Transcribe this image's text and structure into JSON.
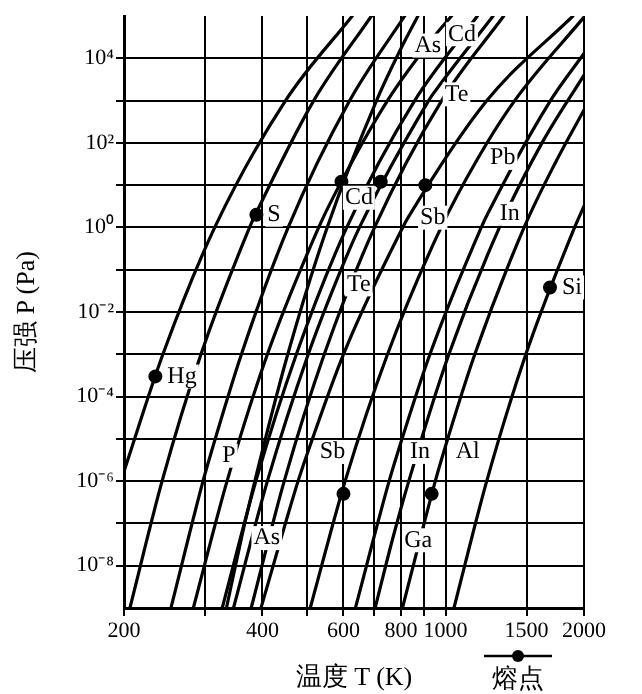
{
  "chart_data": {
    "type": "line",
    "xlabel": "温度 T (K)",
    "ylabel": "压强 P (Pa)",
    "log": "xy",
    "xlim": [
      200,
      2000
    ],
    "ylim": [
      1e-09,
      100000.0
    ],
    "xticks": [
      200,
      {
        "value": 300,
        "label": null
      },
      400,
      {
        "value": 500,
        "label": null
      },
      600,
      {
        "value": 700,
        "label": null
      },
      800,
      {
        "value": 900,
        "label": null
      },
      1000,
      1500,
      2000
    ],
    "yticks": [
      {
        "value": 1e-08,
        "label": "10⁻⁸"
      },
      {
        "value": 1e-07,
        "label": null
      },
      {
        "value": 1e-06,
        "label": "10⁻⁶"
      },
      {
        "value": 1e-05,
        "label": null
      },
      {
        "value": 0.0001,
        "label": "10⁻⁴"
      },
      {
        "value": 0.001,
        "label": null
      },
      {
        "value": 0.01,
        "label": "10⁻²"
      },
      {
        "value": 0.1,
        "label": null
      },
      {
        "value": 1,
        "label": "10⁰"
      },
      {
        "value": 10,
        "label": null
      },
      {
        "value": 100,
        "label": "10²"
      },
      {
        "value": 1000,
        "label": null
      },
      {
        "value": 10000,
        "label": "10⁴"
      }
    ],
    "grid": true,
    "legend": "bottom right",
    "marker": "none",
    "line_style": "solid",
    "series": [
      {
        "color": "#000000",
        "x": [
          200,
          243,
          315,
          449,
          627
        ],
        "values": [
          1.7e-06,
          0.001,
          1,
          1000,
          100000.0
        ]
      },
      {
        "color": "#000000",
        "x": [
          206,
          242,
          294,
          375,
          386,
          517,
          690
        ],
        "values": [
          1e-09,
          1e-06,
          0.001,
          1,
          2,
          1000,
          100000.0
        ]
      },
      {
        "color": "#000000",
        "x": [
          253,
          297,
          308,
          360,
          455,
          619,
          815
        ],
        "values": [
          1e-09,
          1e-06,
          4e-06,
          0.001,
          1,
          1000,
          100000.0
        ]
      },
      {
        "color": "#000000",
        "x": [
          334,
          360,
          385,
          454,
          553,
          708,
          806,
          871
        ],
        "values": [
          1e-09,
          4.5e-08,
          1e-06,
          0.001,
          1,
          1000,
          20000.0,
          100000.0
        ]
      },
      {
        "color": "#000000",
        "x": [
          283,
          335,
          410,
          530,
          569,
          748,
          953,
          1031
        ],
        "values": [
          1e-09,
          1e-06,
          0.001,
          1,
          5,
          1000,
          37000.0,
          100000.0
        ]
      },
      {
        "color": "#000000",
        "x": [
          327,
          387,
          474,
          610,
          857,
          1173
        ],
        "values": [
          1e-09,
          1e-06,
          0.001,
          1,
          1000,
          100000.0
        ]
      },
      {
        "color": "#000000",
        "x": [
          378,
          446,
          545,
          701,
          981,
          1338
        ],
        "values": [
          1e-09,
          1e-06,
          0.001,
          1,
          1000,
          100000.0
        ]
      },
      {
        "color": "#000000",
        "x": [
          346,
          410,
          503,
          575,
          650,
          919,
          938,
          1269
        ],
        "values": [
          1e-09,
          1e-06,
          0.001,
          0.045,
          1,
          1000,
          1400,
          100000.0
        ]
      },
      {
        "color": "#000000",
        "x": [
          397,
          478,
          502,
          600,
          807,
          829,
          1230,
          1892
        ],
        "values": [
          1e-09,
          1e-06,
          4.9e-06,
          0.001,
          1,
          1.7,
          1000,
          100000.0
        ]
      },
      {
        "color": "#000000",
        "x": [
          508,
          605,
          748,
          978,
          1177,
          1414,
          2000
        ],
        "values": [
          1e-09,
          1e-06,
          0.001,
          1,
          44,
          1000,
          94000.0
        ]
      },
      {
        "color": "#000000",
        "x": [
          637,
          754,
          788,
          925,
          1196,
          1235,
          1691,
          2000
        ],
        "values": [
          1e-09,
          1e-06,
          4.9e-06,
          0.001,
          1,
          2.1,
          1000,
          13000.0
        ]
      },
      {
        "color": "#000000",
        "x": [
          703,
          766,
          832,
          1017,
          1310,
          1621,
          2000
        ],
        "values": [
          1e-09,
          4e-08,
          1e-06,
          0.001,
          1,
          100,
          4000
        ]
      },
      {
        "color": "#000000",
        "x": [
          806,
          950,
          991,
          1158,
          1482,
          1723,
          2000
        ],
        "values": [
          1e-09,
          1e-06,
          4.9e-06,
          0.001,
          1,
          30,
          600
        ]
      },
      {
        "color": "#000000",
        "x": [
          1043,
          1229,
          1495,
          1908,
          2000
        ],
        "values": [
          1e-09,
          1e-06,
          0.001,
          1,
          3.2
        ]
      },
      {
        "type": "scatter",
        "name": "熔点",
        "color": "#000000",
        "marker": "circle",
        "x": [
          234,
          388,
          594,
          723,
          904,
          600,
          933,
          1687
        ],
        "values": [
          0.0003,
          2,
          12,
          12,
          10,
          5e-07,
          5e-07,
          0.038
        ]
      }
    ],
    "annotations": [
      {
        "text": "Hg",
        "x": 234,
        "y": 0.0003
      },
      {
        "text": "S",
        "x": 386,
        "y": 2
      },
      {
        "text": "P",
        "x": 308,
        "y": 4e-06
      },
      {
        "text": "As",
        "x": 360,
        "y": 4.5e-08
      },
      {
        "text": "As",
        "x": 806,
        "y": 20000.0
      },
      {
        "text": "Cd",
        "x": 953,
        "y": 37000.0
      },
      {
        "text": "Cd",
        "x": 569,
        "y": 5
      },
      {
        "text": "Te",
        "x": 938,
        "y": 1400
      },
      {
        "text": "Te",
        "x": 575,
        "y": 0.045
      },
      {
        "text": "Sb",
        "x": 829,
        "y": 1.7
      },
      {
        "text": "Sb",
        "x": 502,
        "y": 4.9e-06
      },
      {
        "text": "Pb",
        "x": 1177,
        "y": 44
      },
      {
        "text": "In",
        "x": 1235,
        "y": 2.1
      },
      {
        "text": "In",
        "x": 788,
        "y": 4.9e-06
      },
      {
        "text": "Ga",
        "x": 766,
        "y": 4e-08
      },
      {
        "text": "Al",
        "x": 991,
        "y": 4.9e-06
      },
      {
        "text": "Si",
        "x": 1687,
        "y": 0.038
      }
    ]
  }
}
